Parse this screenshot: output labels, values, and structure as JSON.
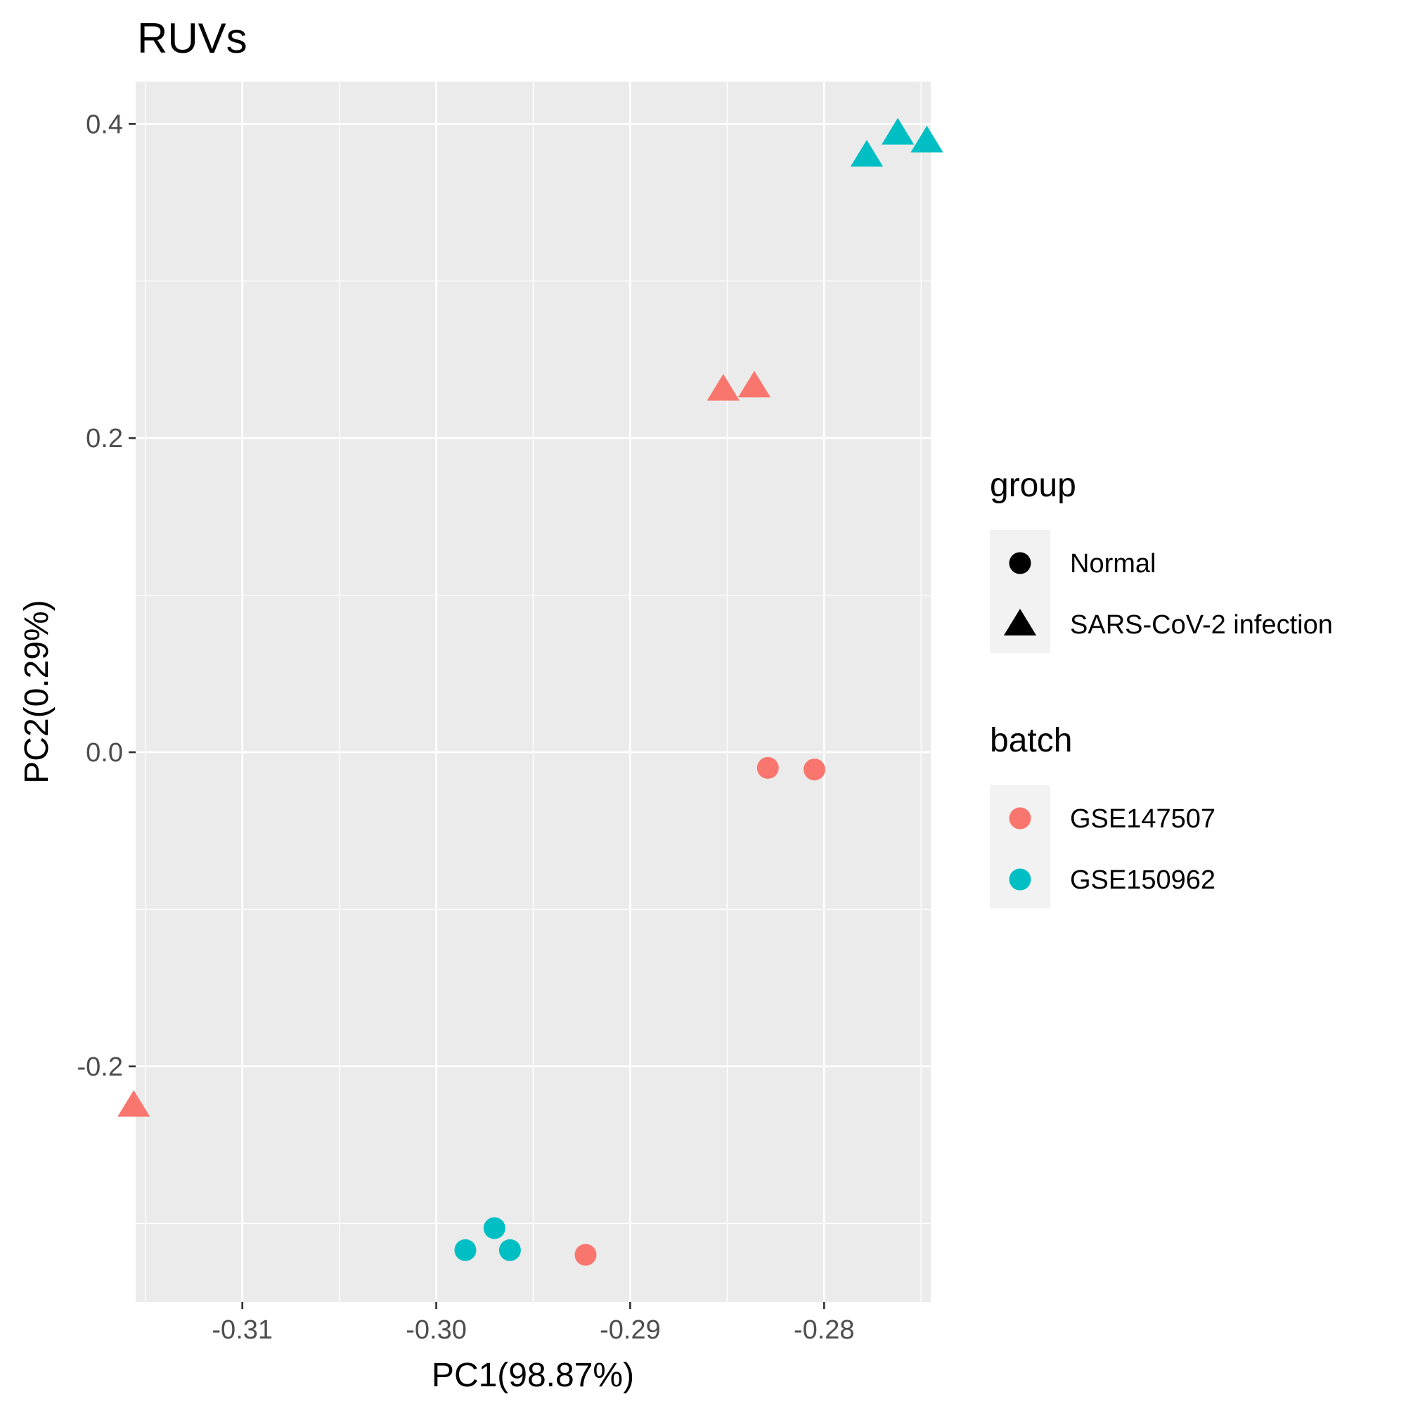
{
  "chart_data": {
    "type": "scatter",
    "title": "RUVs",
    "xlabel": "PC1(98.87%)",
    "ylabel": "PC2(0.29%)",
    "xlim": [
      -0.3155,
      -0.2745
    ],
    "ylim": [
      -0.35,
      0.427
    ],
    "xticks": [
      -0.31,
      -0.3,
      -0.29,
      -0.28
    ],
    "xtick_labels": [
      "-0.31",
      "-0.30",
      "-0.29",
      "-0.28"
    ],
    "yticks": [
      -0.2,
      0.0,
      0.2,
      0.4
    ],
    "ytick_labels": [
      "-0.2",
      "0.0",
      "0.2",
      "0.4"
    ],
    "grid": true,
    "colors": {
      "GSE147507": "#F8766D",
      "GSE150962": "#00BFC4"
    },
    "points": [
      {
        "x": -0.2778,
        "y": 0.38,
        "group": "SARS-CoV-2 infection",
        "batch": "GSE150962"
      },
      {
        "x": -0.2762,
        "y": 0.394,
        "group": "SARS-CoV-2 infection",
        "batch": "GSE150962"
      },
      {
        "x": -0.2747,
        "y": 0.389,
        "group": "SARS-CoV-2 infection",
        "batch": "GSE150962"
      },
      {
        "x": -0.2852,
        "y": 0.231,
        "group": "SARS-CoV-2 infection",
        "batch": "GSE147507"
      },
      {
        "x": -0.2836,
        "y": 0.233,
        "group": "SARS-CoV-2 infection",
        "batch": "GSE147507"
      },
      {
        "x": -0.3156,
        "y": -0.225,
        "group": "SARS-CoV-2 infection",
        "batch": "GSE147507"
      },
      {
        "x": -0.2829,
        "y": -0.01,
        "group": "Normal",
        "batch": "GSE147507"
      },
      {
        "x": -0.2805,
        "y": -0.011,
        "group": "Normal",
        "batch": "GSE147507"
      },
      {
        "x": -0.2923,
        "y": -0.32,
        "group": "Normal",
        "batch": "GSE147507"
      },
      {
        "x": -0.2985,
        "y": -0.317,
        "group": "Normal",
        "batch": "GSE150962"
      },
      {
        "x": -0.297,
        "y": -0.303,
        "group": "Normal",
        "batch": "GSE150962"
      },
      {
        "x": -0.2962,
        "y": -0.317,
        "group": "Normal",
        "batch": "GSE150962"
      }
    ],
    "legends": [
      {
        "title": "group",
        "kind": "shape",
        "entries": [
          {
            "label": "Normal",
            "shape": "circle"
          },
          {
            "label": "SARS-CoV-2 infection",
            "shape": "triangle"
          }
        ]
      },
      {
        "title": "batch",
        "kind": "color",
        "entries": [
          {
            "label": "GSE147507",
            "color": "#F8766D"
          },
          {
            "label": "GSE150962",
            "color": "#00BFC4"
          }
        ]
      }
    ],
    "legend_position": "right"
  }
}
